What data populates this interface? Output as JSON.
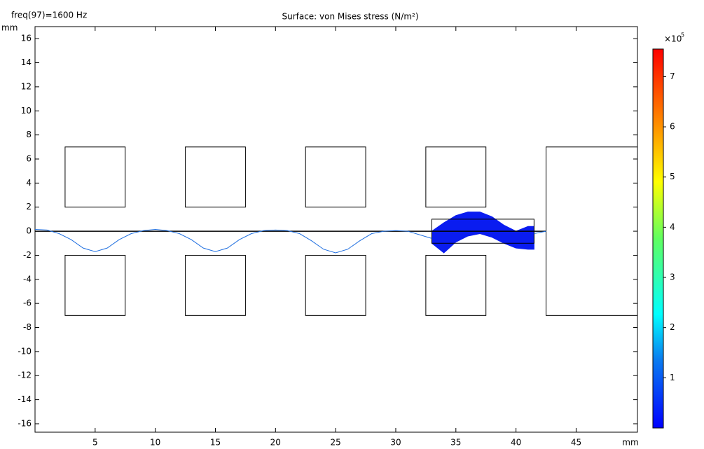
{
  "chart_data": {
    "type": "surface",
    "title": "Surface: von Mises stress (N/m²)",
    "annotation": "freq(97)=1600 Hz",
    "x_label": "mm",
    "y_label": "mm",
    "xlim": [
      0,
      50.1
    ],
    "ylim": [
      -16.7,
      17
    ],
    "xticks": [
      5,
      10,
      15,
      20,
      25,
      30,
      35,
      40,
      45
    ],
    "yticks": [
      -16,
      -14,
      -12,
      -10,
      -8,
      -6,
      -4,
      -2,
      0,
      2,
      4,
      6,
      8,
      10,
      12,
      14,
      16
    ],
    "shapes": [
      {
        "x0": 2.5,
        "x1": 7.5,
        "y0": 2,
        "y1": 7
      },
      {
        "x0": 12.5,
        "x1": 17.5,
        "y0": 2,
        "y1": 7
      },
      {
        "x0": 22.5,
        "x1": 27.5,
        "y0": 2,
        "y1": 7
      },
      {
        "x0": 32.5,
        "x1": 37.5,
        "y0": 2,
        "y1": 7
      },
      {
        "x0": 2.5,
        "x1": 7.5,
        "y0": -7,
        "y1": -2
      },
      {
        "x0": 12.5,
        "x1": 17.5,
        "y0": -7,
        "y1": -2
      },
      {
        "x0": 22.5,
        "x1": 27.5,
        "y0": -7,
        "y1": -2
      },
      {
        "x0": 32.5,
        "x1": 37.5,
        "y0": -7,
        "y1": -2
      },
      {
        "x0": 42.5,
        "x1": 50.1,
        "y0": -7,
        "y1": 7
      },
      {
        "x0": 33,
        "x1": 41.5,
        "y0": -1,
        "y1": 1
      }
    ],
    "axis_line": {
      "x": [
        0,
        42.5
      ],
      "y": [
        0,
        0
      ]
    },
    "series": [
      {
        "color": "#1f6fe0",
        "x": [
          0,
          1,
          2,
          3,
          4,
          5,
          6,
          7,
          8,
          9,
          10,
          11,
          12,
          13,
          14,
          15,
          16,
          17,
          18,
          19,
          20,
          21,
          22,
          23,
          24,
          25,
          26,
          27,
          28,
          29,
          30,
          31,
          32,
          33
        ],
        "values": [
          0.15,
          0.1,
          -0.2,
          -0.7,
          -1.4,
          -1.7,
          -1.4,
          -0.7,
          -0.2,
          0.05,
          0.15,
          0.05,
          -0.2,
          -0.7,
          -1.4,
          -1.7,
          -1.4,
          -0.7,
          -0.2,
          0.05,
          0.1,
          0.05,
          -0.2,
          -0.8,
          -1.5,
          -1.8,
          -1.5,
          -0.8,
          -0.2,
          0.0,
          0.05,
          0.0,
          -0.3,
          -0.6
        ]
      },
      {
        "color": "#1f6fe0",
        "x": [
          41.5,
          42.5
        ],
        "values": [
          -0.2,
          0
        ]
      }
    ],
    "deformed_beam": {
      "color": "#0a1cf0",
      "x": [
        33,
        34,
        35,
        36,
        37,
        38,
        39,
        40,
        41,
        41.5
      ],
      "upper": [
        0.0,
        0.7,
        1.3,
        1.6,
        1.6,
        1.2,
        0.5,
        0.0,
        0.4,
        0.4
      ],
      "lower": [
        -1.0,
        -1.8,
        -0.9,
        -0.4,
        -0.2,
        -0.5,
        -1.0,
        -1.4,
        -1.5,
        -1.5
      ]
    },
    "colorbar": {
      "multiplier": "×10",
      "exponent": "5",
      "clim": [
        0,
        7.55
      ],
      "ticks": [
        1,
        2,
        3,
        4,
        5,
        6,
        7
      ]
    }
  }
}
